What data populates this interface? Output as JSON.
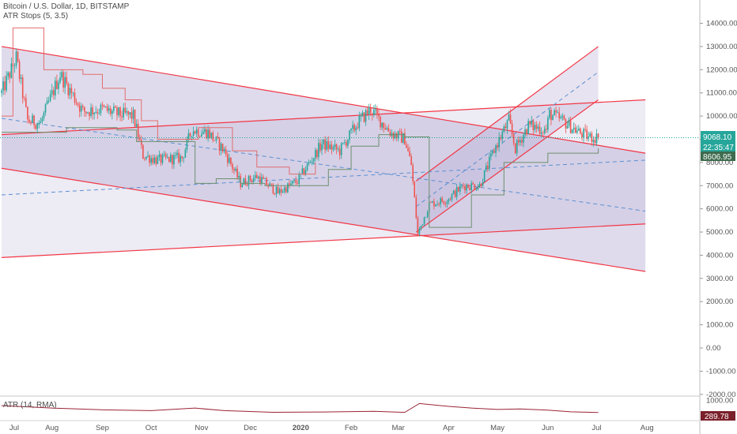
{
  "header": {
    "symbol_line": "Bitcoin / U.S. Dollar, 1D, BITSTAMP",
    "indicator_line": "ATR Stops (5, 3.5)",
    "atr_label": "ATR (14, RMA)"
  },
  "badges": {
    "price": "9068.10",
    "countdown": "22:35:47",
    "stop": "8606.95",
    "atr": "289.78"
  },
  "colors": {
    "background": "#ffffff",
    "channel_fill": "#b9b0d4",
    "red": "#f23645",
    "blue_dashed": "#5b8fd1",
    "stop_red": "#e26d6d",
    "stop_green": "#6d8f6d",
    "candle_up": "#26a69a",
    "candle_down": "#ef5350",
    "price_badge": "#26a69a",
    "stop_badge": "#3d6b4e",
    "atr_badge": "#7b1f2a"
  },
  "chart_data": [
    {
      "type": "candlestick",
      "title": "Bitcoin / U.S. Dollar, 1D, BITSTAMP",
      "x_ticks": [
        "Jul",
        "Aug",
        "Sep",
        "Oct",
        "Nov",
        "Dec",
        "2020",
        "Feb",
        "Mar",
        "Apr",
        "May",
        "Jun",
        "Jul",
        "Aug"
      ],
      "y_ticks": [
        "14000.00",
        "13000.00",
        "12000.00",
        "11000.00",
        "10000.00",
        "9000.00",
        "8000.00",
        "7000.00",
        "6000.00",
        "5000.00",
        "4000.00",
        "3000.00",
        "2000.00",
        "1000.00",
        "0.00",
        "-1000.00",
        "-2000.00"
      ],
      "ylim": [
        -2000,
        15000
      ],
      "grid": false,
      "price_series": [
        [
          "2019-07-01",
          11000
        ],
        [
          "2019-07-10",
          12500
        ],
        [
          "2019-07-17",
          9800
        ],
        [
          "2019-07-25",
          9700
        ],
        [
          "2019-08-06",
          11800
        ],
        [
          "2019-08-20",
          10200
        ],
        [
          "2019-09-01",
          10300
        ],
        [
          "2019-09-10",
          10100
        ],
        [
          "2019-09-20",
          10000
        ],
        [
          "2019-09-26",
          8300
        ],
        [
          "2019-10-05",
          8100
        ],
        [
          "2019-10-20",
          8200
        ],
        [
          "2019-10-26",
          9400
        ],
        [
          "2019-11-05",
          9300
        ],
        [
          "2019-11-15",
          8500
        ],
        [
          "2019-11-25",
          7100
        ],
        [
          "2019-12-05",
          7400
        ],
        [
          "2019-12-18",
          6700
        ],
        [
          "2019-12-30",
          7200
        ],
        [
          "2020-01-14",
          8800
        ],
        [
          "2020-01-25",
          8500
        ],
        [
          "2020-02-05",
          9700
        ],
        [
          "2020-02-13",
          10300
        ],
        [
          "2020-02-25",
          9300
        ],
        [
          "2020-03-05",
          9000
        ],
        [
          "2020-03-09",
          7900
        ],
        [
          "2020-03-13",
          4900
        ],
        [
          "2020-03-20",
          6200
        ],
        [
          "2020-03-31",
          6400
        ],
        [
          "2020-04-10",
          7000
        ],
        [
          "2020-04-20",
          7000
        ],
        [
          "2020-04-30",
          8700
        ],
        [
          "2020-05-08",
          9800
        ],
        [
          "2020-05-12",
          8600
        ],
        [
          "2020-05-20",
          9600
        ],
        [
          "2020-05-31",
          9400
        ],
        [
          "2020-06-02",
          10100
        ],
        [
          "2020-06-10",
          9800
        ],
        [
          "2020-06-20",
          9300
        ],
        [
          "2020-06-26",
          9100
        ],
        [
          "2020-07-02",
          9068
        ]
      ],
      "trend_lines_red": [
        {
          "from": [
            "2019-07-01",
            13000
          ],
          "to": [
            "2020-07-31",
            8400
          ]
        },
        {
          "from": [
            "2019-07-01",
            9200
          ],
          "to": [
            "2020-07-31",
            10700
          ]
        },
        {
          "from": [
            "2019-07-01",
            7750
          ],
          "to": [
            "2020-07-31",
            3300
          ]
        },
        {
          "from": [
            "2019-07-01",
            3900
          ],
          "to": [
            "2020-07-31",
            5350
          ]
        },
        {
          "from": [
            "2020-03-12",
            5000
          ],
          "to": [
            "2020-07-02",
            10700
          ]
        },
        {
          "from": [
            "2020-03-12",
            7200
          ],
          "to": [
            "2020-07-02",
            13000
          ]
        }
      ],
      "trend_lines_blue_dashed": [
        {
          "from": [
            "2019-07-01",
            9900
          ],
          "to": [
            "2020-07-31",
            5900
          ]
        },
        {
          "from": [
            "2019-07-01",
            6600
          ],
          "to": [
            "2020-07-31",
            8100
          ]
        },
        {
          "from": [
            "2020-03-12",
            6100
          ],
          "to": [
            "2020-07-02",
            11900
          ]
        }
      ],
      "atr_stops_red": [
        [
          "2019-07-01",
          10000
        ],
        [
          "2019-07-08",
          13800
        ],
        [
          "2019-07-18",
          13800
        ],
        [
          "2019-07-27",
          12000
        ],
        [
          "2019-08-20",
          11800
        ],
        [
          "2019-09-01",
          11200
        ],
        [
          "2019-09-15",
          10700
        ],
        [
          "2019-09-25",
          9800
        ],
        [
          "2019-10-05",
          9000
        ],
        [
          "2019-10-30",
          9500
        ],
        [
          "2019-11-20",
          8500
        ],
        [
          "2019-12-05",
          7800
        ],
        [
          "2019-12-25",
          7500
        ],
        [
          "2020-01-10",
          8000
        ]
      ],
      "atr_stops_green": [
        [
          "2019-07-01",
          9300
        ],
        [
          "2019-08-10",
          9500
        ],
        [
          "2019-09-10",
          9400
        ],
        [
          "2019-09-22",
          8900
        ],
        [
          "2019-10-28",
          7100
        ],
        [
          "2019-11-10",
          7300
        ],
        [
          "2019-11-25",
          7100
        ],
        [
          "2019-12-10",
          7000
        ],
        [
          "2020-01-18",
          7700
        ],
        [
          "2020-02-01",
          8700
        ],
        [
          "2020-02-18",
          9200
        ],
        [
          "2020-03-05",
          9100
        ],
        [
          "2020-03-20",
          5200
        ],
        [
          "2020-04-15",
          6600
        ],
        [
          "2020-05-05",
          8000
        ],
        [
          "2020-06-01",
          8400
        ],
        [
          "2020-07-02",
          8607
        ]
      ]
    },
    {
      "type": "line",
      "title": "ATR (14, RMA)",
      "y_ticks": [
        "1000.00",
        "0.00"
      ],
      "ylim": [
        0,
        1000
      ],
      "series": [
        {
          "name": "ATR (14, RMA)",
          "x": [
            "2019-07-01",
            "2019-08-01",
            "2019-09-01",
            "2019-10-01",
            "2019-10-28",
            "2019-11-15",
            "2019-12-15",
            "2020-01-15",
            "2020-02-15",
            "2020-03-05",
            "2020-03-14",
            "2020-04-01",
            "2020-04-15",
            "2020-05-01",
            "2020-05-15",
            "2020-06-01",
            "2020-06-15",
            "2020-07-02"
          ],
          "values": [
            700,
            550,
            450,
            400,
            550,
            400,
            300,
            320,
            360,
            300,
            820,
            650,
            550,
            470,
            500,
            430,
            330,
            290
          ]
        }
      ]
    }
  ]
}
